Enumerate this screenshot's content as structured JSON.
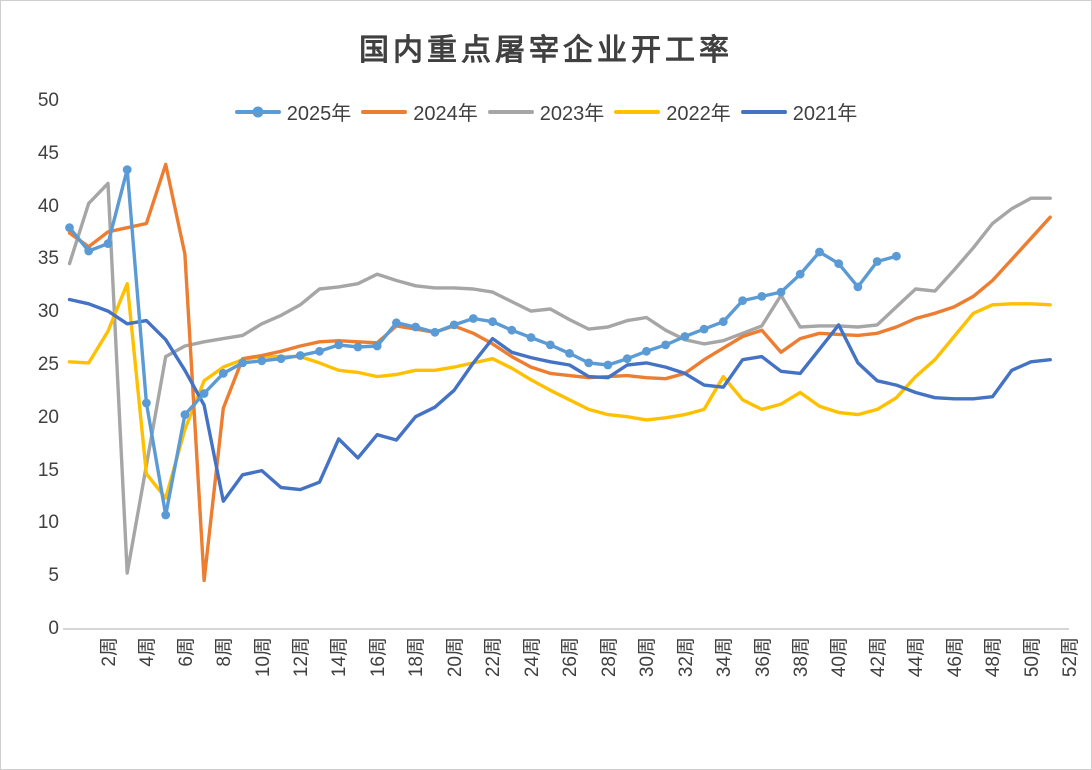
{
  "window": {
    "background": "#ffffff",
    "border_color": "#cfcfcf",
    "axis_line_color": "#d6d6d6",
    "tick_text_color": "#404040",
    "title_text_color": "#404040"
  },
  "chart_data": {
    "type": "line",
    "title": "国内重点屠宰企业开工率",
    "xlabel": "",
    "ylabel": "",
    "ylim": [
      0,
      50
    ],
    "y_ticks": [
      0,
      5,
      10,
      15,
      20,
      25,
      30,
      35,
      40,
      45,
      50
    ],
    "x_unit_suffix": "周",
    "categories": [
      1,
      2,
      3,
      4,
      5,
      6,
      7,
      8,
      9,
      10,
      11,
      12,
      13,
      14,
      15,
      16,
      17,
      18,
      19,
      20,
      21,
      22,
      23,
      24,
      25,
      26,
      27,
      28,
      29,
      30,
      31,
      32,
      33,
      34,
      35,
      36,
      37,
      38,
      39,
      40,
      41,
      42,
      43,
      44,
      45,
      46,
      47,
      48,
      49,
      50,
      51,
      52
    ],
    "x_tick_labels": [
      "2周",
      "4周",
      "6周",
      "8周",
      "10周",
      "12周",
      "14周",
      "16周",
      "18周",
      "20周",
      "22周",
      "24周",
      "26周",
      "28周",
      "30周",
      "32周",
      "34周",
      "36周",
      "38周",
      "40周",
      "42周",
      "44周",
      "46周",
      "48周",
      "50周",
      "52周"
    ],
    "grid": false,
    "legend_position": "top",
    "series": [
      {
        "name": "2025年",
        "color": "#5B9BD5",
        "marker": "circle",
        "values": [
          38.0,
          35.8,
          36.5,
          43.5,
          21.4,
          10.8,
          20.3,
          22.3,
          24.2,
          25.2,
          25.4,
          25.6,
          25.9,
          26.3,
          26.9,
          26.7,
          26.8,
          29.0,
          28.6,
          28.1,
          28.8,
          29.4,
          29.1,
          28.3,
          27.6,
          26.9,
          26.1,
          25.2,
          25.0,
          25.6,
          26.3,
          26.9,
          27.7,
          28.4,
          29.1,
          31.1,
          31.5,
          31.9,
          33.6,
          35.7,
          34.6,
          32.4,
          34.8,
          35.3
        ]
      },
      {
        "name": "2024年",
        "color": "#ED7D31",
        "marker": "none",
        "values": [
          37.5,
          36.2,
          37.6,
          38.0,
          38.4,
          44.0,
          35.5,
          4.6,
          20.9,
          25.6,
          25.9,
          26.3,
          26.8,
          27.2,
          27.3,
          27.2,
          27.1,
          28.7,
          28.4,
          28.1,
          28.7,
          28.0,
          27.0,
          25.8,
          24.8,
          24.2,
          24.0,
          23.8,
          23.9,
          24.0,
          23.8,
          23.7,
          24.2,
          25.5,
          26.6,
          27.7,
          28.3,
          26.2,
          27.5,
          28.0,
          27.9,
          27.8,
          28.0,
          28.6,
          29.4,
          29.9,
          30.5,
          31.5,
          33.0,
          35.0,
          37.0,
          39.0
        ]
      },
      {
        "name": "2023年",
        "color": "#A6A6A6",
        "marker": "none",
        "values": [
          34.6,
          40.3,
          42.2,
          5.3,
          15.5,
          25.8,
          26.8,
          27.2,
          27.5,
          27.8,
          28.9,
          29.7,
          30.7,
          32.2,
          32.4,
          32.7,
          33.6,
          33.0,
          32.5,
          32.3,
          32.3,
          32.2,
          31.9,
          31.0,
          30.1,
          30.3,
          29.3,
          28.4,
          28.6,
          29.2,
          29.5,
          28.3,
          27.4,
          27.0,
          27.3,
          28.0,
          28.7,
          31.6,
          28.6,
          28.7,
          28.7,
          28.6,
          28.8,
          30.5,
          32.2,
          32.0,
          34.0,
          36.1,
          38.4,
          39.8,
          40.8,
          40.8
        ]
      },
      {
        "name": "2022年",
        "color": "#FFC000",
        "marker": "none",
        "values": [
          25.3,
          25.2,
          28.2,
          32.7,
          14.7,
          12.4,
          18.9,
          23.5,
          24.8,
          25.5,
          25.8,
          25.8,
          25.8,
          25.2,
          24.5,
          24.3,
          23.9,
          24.1,
          24.5,
          24.5,
          24.8,
          25.2,
          25.6,
          24.7,
          23.6,
          22.6,
          21.7,
          20.8,
          20.3,
          20.1,
          19.8,
          20.0,
          20.3,
          20.8,
          23.9,
          21.7,
          20.8,
          21.3,
          22.4,
          21.1,
          20.5,
          20.3,
          20.8,
          21.9,
          23.9,
          25.5,
          27.7,
          29.9,
          30.7,
          30.8,
          30.8,
          30.7
        ]
      },
      {
        "name": "2021年",
        "color": "#4472C4",
        "marker": "none",
        "values": [
          31.2,
          30.8,
          30.1,
          28.9,
          29.2,
          27.4,
          24.5,
          21.2,
          12.1,
          14.6,
          15.0,
          13.4,
          13.2,
          13.9,
          18.0,
          16.2,
          18.4,
          17.9,
          20.1,
          21.0,
          22.6,
          25.2,
          27.5,
          26.2,
          25.7,
          25.3,
          25.0,
          23.9,
          23.8,
          25.0,
          25.2,
          24.8,
          24.2,
          23.1,
          22.9,
          25.5,
          25.8,
          24.4,
          24.2,
          26.5,
          28.8,
          25.2,
          23.5,
          23.1,
          22.4,
          21.9,
          21.8,
          21.8,
          22.0,
          24.5,
          25.3,
          25.5
        ]
      }
    ]
  }
}
